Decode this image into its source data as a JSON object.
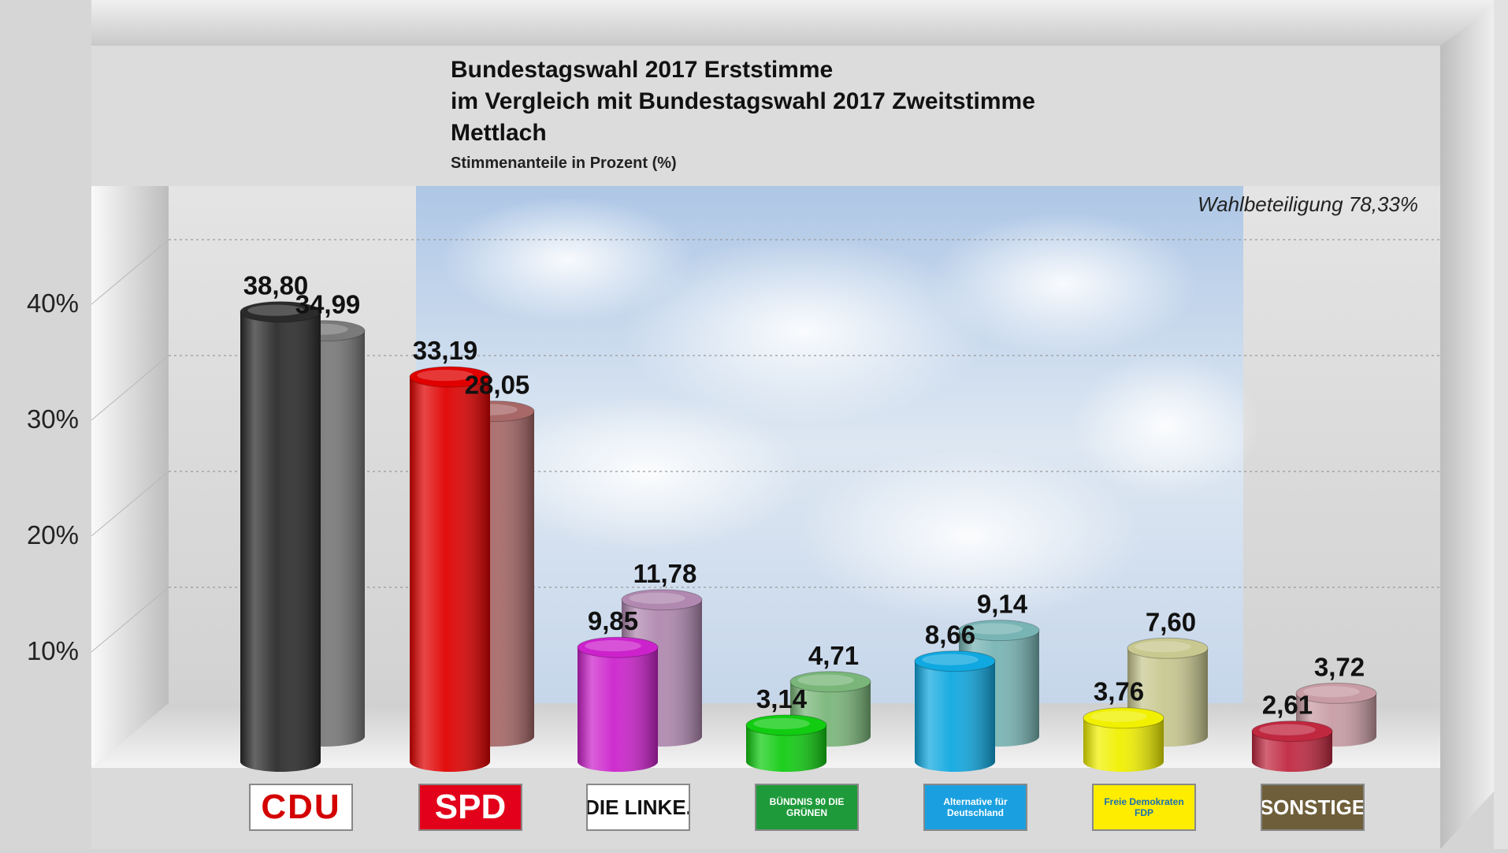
{
  "header": {
    "title_line1": "Bundestagswahl 2017 Erststimme",
    "title_line2": "im Vergleich mit Bundestagswahl 2017 Zweitstimme",
    "title_line3": "Mettlach",
    "subtitle": "Stimmenanteile in Prozent (%)",
    "turnout": "Wahlbeteiligung 78,33%"
  },
  "chart_data": {
    "type": "bar",
    "categories": [
      "CDU",
      "SPD",
      "DIE LINKE.",
      "BÜNDNIS 90 DIE GRÜNEN",
      "Alternative für Deutschland",
      "Freie Demokraten FDP",
      "SONSTIGE"
    ],
    "series": [
      {
        "name": "Erststimme",
        "values": [
          38.8,
          33.19,
          9.85,
          3.14,
          8.66,
          3.76,
          2.61
        ]
      },
      {
        "name": "Zweitstimme",
        "values": [
          34.99,
          28.05,
          11.78,
          4.71,
          9.14,
          7.6,
          3.72
        ]
      }
    ],
    "value_labels": {
      "first": [
        "38,80",
        "33,19",
        "9,85",
        "3,14",
        "8,66",
        "3,76",
        "2,61"
      ],
      "second": [
        "34,99",
        "28,05",
        "11,78",
        "4,71",
        "9,14",
        "7,60",
        "3,72"
      ]
    },
    "y_ticks": [
      10,
      20,
      30,
      40
    ],
    "y_tick_labels": [
      "10%",
      "20%",
      "30%",
      "40%"
    ],
    "ylim": [
      0,
      50
    ],
    "grid": true,
    "colors": {
      "first": [
        "#2b2b2b",
        "#e00000",
        "#cc22cc",
        "#11cc11",
        "#10a8e0",
        "#f0f000",
        "#c02840"
      ],
      "second": [
        "#7a7a7a",
        "#a86868",
        "#b088b0",
        "#7ab67a",
        "#78b4b4",
        "#c8c890",
        "#c89ca4"
      ]
    }
  },
  "logos": [
    {
      "name": "cdu-logo",
      "text": "CDU",
      "bg": "#ffffff",
      "fg": "#d40000"
    },
    {
      "name": "spd-logo",
      "text": "SPD",
      "bg": "#e2001a",
      "fg": "#ffffff"
    },
    {
      "name": "linke-logo",
      "text": "DIE LINKE.",
      "bg": "#ffffff",
      "fg": "#111111"
    },
    {
      "name": "gruene-logo",
      "text": "BÜNDNIS 90 DIE GRÜNEN",
      "bg": "#1e9a3a",
      "fg": "#ffffff"
    },
    {
      "name": "afd-logo",
      "text": "Alternative für Deutschland",
      "bg": "#1aa0e0",
      "fg": "#ffffff"
    },
    {
      "name": "fdp-logo",
      "text": "Freie Demokraten FDP",
      "bg": "#ffed00",
      "fg": "#1a6fb0"
    },
    {
      "name": "sonstige-logo",
      "text": "SONSTIGE",
      "bg": "#6e5f3a",
      "fg": "#ffffff"
    }
  ]
}
